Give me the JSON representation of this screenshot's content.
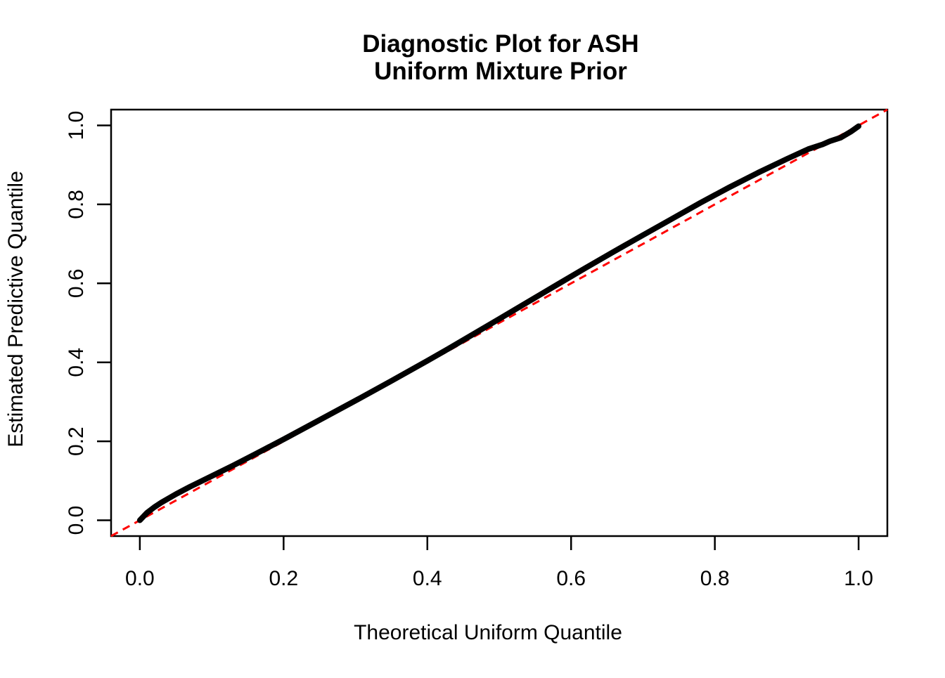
{
  "chart_data": {
    "type": "line",
    "title": "Diagnostic Plot for ASH\nUniform Mixture Prior",
    "title_lines": [
      "Diagnostic Plot for ASH",
      "Uniform Mixture Prior"
    ],
    "xlabel": "Theoretical Uniform Quantile",
    "ylabel": "Estimated Predictive Quantile",
    "xlim": [
      0,
      1
    ],
    "ylim": [
      0,
      1
    ],
    "axis_expansion": 0.04,
    "grid": false,
    "legend": "none",
    "background_color": "#ffffff",
    "x_ticks": {
      "values": [
        0.0,
        0.2,
        0.4,
        0.6,
        0.8,
        1.0
      ],
      "labels": [
        "0.0",
        "0.2",
        "0.4",
        "0.6",
        "0.8",
        "1.0"
      ]
    },
    "y_ticks": {
      "values": [
        0.0,
        0.2,
        0.4,
        0.6,
        0.8,
        1.0
      ],
      "labels": [
        "0.0",
        "0.2",
        "0.4",
        "0.6",
        "0.8",
        "1.0"
      ]
    },
    "series": [
      {
        "name": "estimated-predictive-quantiles",
        "type": "line",
        "color": "#000000",
        "linewidth": 8,
        "points": [
          [
            0.0,
            0.0
          ],
          [
            0.01,
            0.019
          ],
          [
            0.02,
            0.033
          ],
          [
            0.03,
            0.045
          ],
          [
            0.05,
            0.066
          ],
          [
            0.07,
            0.085
          ],
          [
            0.1,
            0.112
          ],
          [
            0.13,
            0.139
          ],
          [
            0.16,
            0.167
          ],
          [
            0.2,
            0.205
          ],
          [
            0.25,
            0.254
          ],
          [
            0.3,
            0.303
          ],
          [
            0.35,
            0.353
          ],
          [
            0.4,
            0.404
          ],
          [
            0.43,
            0.435
          ],
          [
            0.46,
            0.467
          ],
          [
            0.5,
            0.51
          ],
          [
            0.54,
            0.553
          ],
          [
            0.58,
            0.596
          ],
          [
            0.62,
            0.639
          ],
          [
            0.66,
            0.681
          ],
          [
            0.7,
            0.722
          ],
          [
            0.74,
            0.763
          ],
          [
            0.78,
            0.804
          ],
          [
            0.82,
            0.843
          ],
          [
            0.86,
            0.88
          ],
          [
            0.9,
            0.915
          ],
          [
            0.93,
            0.94
          ],
          [
            0.95,
            0.952
          ],
          [
            0.96,
            0.96
          ],
          [
            0.975,
            0.969
          ],
          [
            0.99,
            0.985
          ],
          [
            1.0,
            0.998
          ]
        ]
      }
    ],
    "reference_line": {
      "name": "identity-line",
      "intercept": 0,
      "slope": 1,
      "color": "#FF0000",
      "style": "dashed",
      "linewidth": 3
    }
  }
}
